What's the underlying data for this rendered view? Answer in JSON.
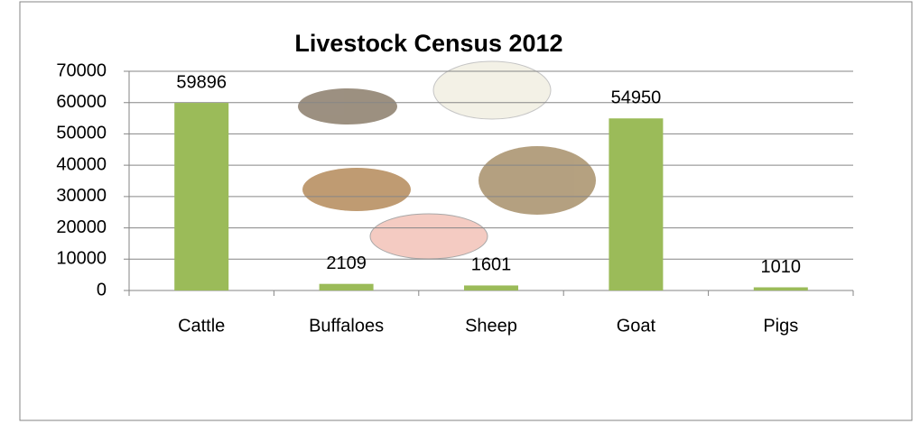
{
  "chart_data": {
    "type": "bar",
    "title": "Livestock Census 2012",
    "categories": [
      "Cattle",
      "Buffaloes",
      "Sheep",
      "Goat",
      "Pigs"
    ],
    "values": [
      59896,
      2109,
      1601,
      54950,
      1010
    ],
    "color": "#9bbb59",
    "ylim": [
      0,
      70000
    ],
    "yticks": [
      0,
      10000,
      20000,
      30000,
      40000,
      50000,
      60000,
      70000
    ],
    "grid": true
  }
}
